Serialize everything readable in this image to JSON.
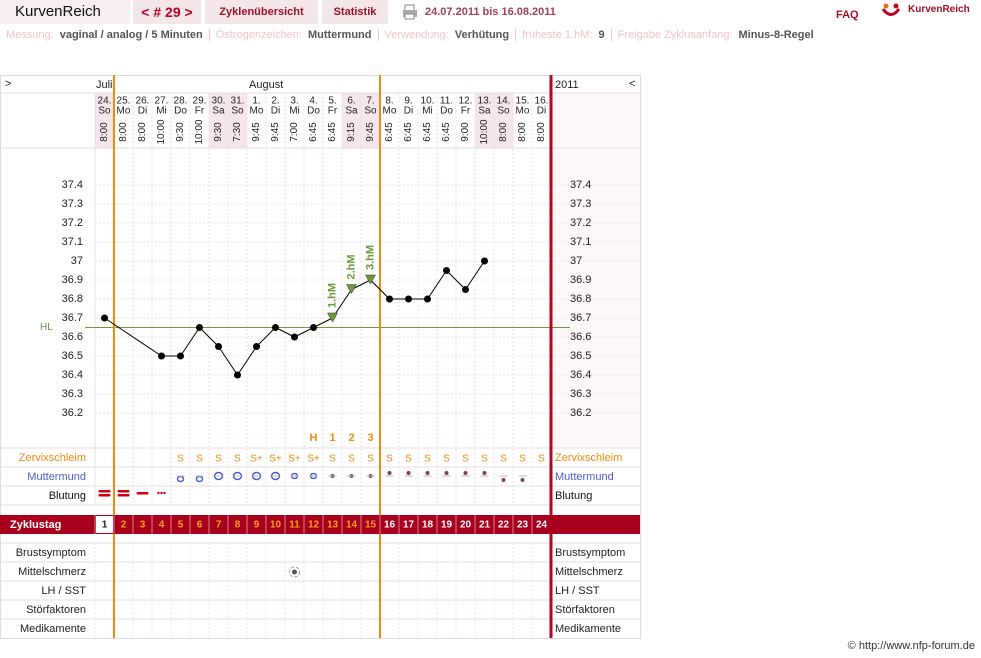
{
  "header": {
    "app_title": "KurvenReich",
    "cycle_nav": "< # 29 >",
    "tabs": [
      "Zyklenübersicht",
      "Statistik"
    ],
    "date_range": "24.07.2011 bis 16.08.2011",
    "faq": "FAQ",
    "logo": "KurvenReich"
  },
  "info_bar": [
    {
      "label": "Messung:",
      "value": "vaginal / analog / 5 Minuten"
    },
    {
      "label": "Östrogenzeichen:",
      "value": "Muttermund"
    },
    {
      "label": "Verwendung:",
      "value": "Verhütung"
    },
    {
      "label": "früheste 1.hM:",
      "value": "9"
    },
    {
      "label": "Freigabe Zyklusanfang:",
      "value": "Minus-8-Regel"
    }
  ],
  "chart": {
    "nav_left": ">",
    "nav_right": "<",
    "months": [
      "Juli",
      "August"
    ],
    "year": "2011",
    "dates": [
      "24.",
      "25.",
      "26.",
      "27.",
      "28.",
      "29.",
      "30.",
      "31.",
      "1.",
      "2.",
      "3.",
      "4.",
      "5.",
      "6.",
      "7.",
      "8.",
      "9.",
      "10.",
      "11.",
      "12.",
      "13.",
      "14.",
      "15.",
      "16."
    ],
    "weekdays": [
      "So",
      "Mo",
      "Di",
      "Mi",
      "Do",
      "Fr",
      "Sa",
      "So",
      "Mo",
      "Di",
      "Mi",
      "Do",
      "Fr",
      "Sa",
      "So",
      "Mo",
      "Di",
      "Mi",
      "Do",
      "Fr",
      "Sa",
      "So",
      "Mo",
      "Di"
    ],
    "times": [
      "8:00",
      "8:00",
      "8:00",
      "10:00",
      "9:30",
      "10:00",
      "9:30",
      "7:30",
      "9:45",
      "9:45",
      "7:00",
      "6:45",
      "6:45",
      "9:15",
      "9:45",
      "6:45",
      "6:45",
      "6:45",
      "6:45",
      "9:00",
      "10:00",
      "8:00",
      "8:00",
      "8:00"
    ]
  },
  "temperature_chart": {
    "type": "line",
    "values": [
      36.7,
      null,
      null,
      36.5,
      36.5,
      36.65,
      36.55,
      36.4,
      36.55,
      36.65,
      36.6,
      36.65,
      36.7,
      36.85,
      36.9,
      36.8,
      36.8,
      36.8,
      36.95,
      36.85,
      37,
      null,
      null,
      null
    ],
    "hm_labels": [
      null,
      null,
      null,
      null,
      null,
      null,
      null,
      null,
      null,
      null,
      null,
      null,
      "1.hM",
      "2.hM",
      "3.hM",
      null,
      null,
      null,
      null,
      null,
      null,
      null,
      null,
      null
    ],
    "ylim": [
      36.0,
      37.6
    ],
    "yticks": [
      36.2,
      36.3,
      36.4,
      36.5,
      36.6,
      36.7,
      36.8,
      36.9,
      37,
      37.1,
      37.2,
      37.3,
      37.4
    ],
    "coverline": 36.65,
    "coverline_label": "HL",
    "grid": true
  },
  "rows": {
    "cervical_mucus": {
      "label": "Zervixschleim",
      "values": [
        null,
        null,
        null,
        null,
        "S",
        "S",
        "S",
        "S",
        "S+",
        "S+",
        "S+",
        "S+",
        "S",
        "S",
        "S",
        "S",
        "S",
        "S",
        "S",
        "S",
        "S",
        "S",
        "S",
        "S"
      ],
      "peak_labels": [
        null,
        null,
        null,
        null,
        null,
        null,
        null,
        null,
        null,
        null,
        null,
        "H",
        "1",
        "2",
        "3",
        null,
        null,
        null,
        null,
        null,
        null,
        null,
        null,
        null
      ]
    },
    "cervix": {
      "label": "Muttermund"
    },
    "bleeding": {
      "label": "Blutung"
    },
    "cycle_day": {
      "label": "Zyklustag",
      "values": [
        1,
        2,
        3,
        4,
        5,
        6,
        7,
        8,
        9,
        10,
        11,
        12,
        13,
        14,
        15,
        16,
        17,
        18,
        19,
        20,
        21,
        22,
        23,
        24
      ]
    },
    "lower": [
      "Brustsymptom",
      "Mittelschmerz",
      "LH / SST",
      "Störfaktoren",
      "Medikamente"
    ]
  },
  "footer": "© http://www.nfp-forum.de"
}
